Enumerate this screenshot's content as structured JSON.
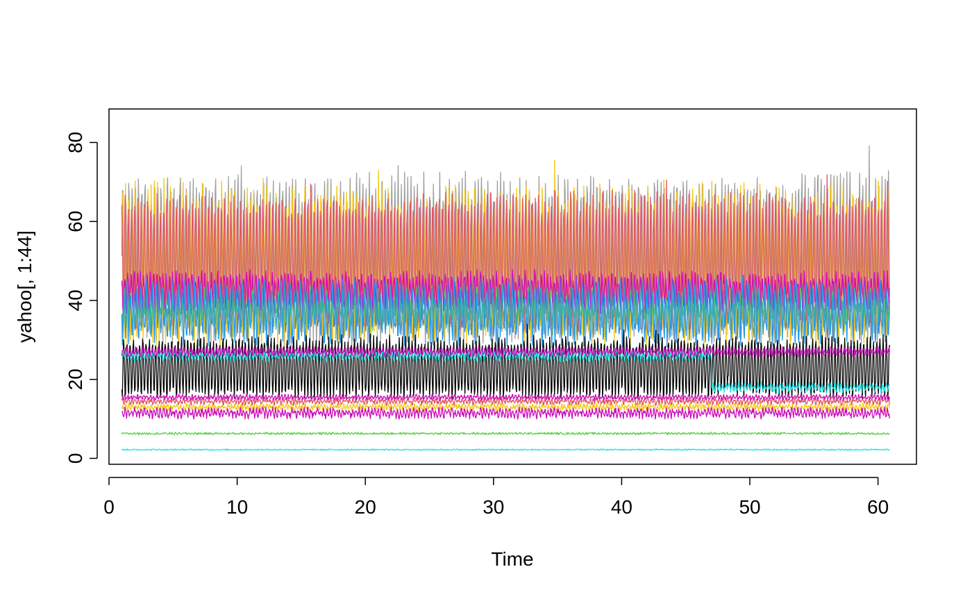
{
  "chart_data": {
    "type": "line",
    "title": "",
    "xlabel": "Time",
    "ylabel": "yahoo[, 1:44]",
    "xlim": [
      0,
      63
    ],
    "ylim": [
      -1.5,
      88.5
    ],
    "x_ticks": [
      0,
      10,
      20,
      30,
      40,
      50,
      60
    ],
    "y_ticks": [
      0,
      20,
      40,
      60,
      80
    ],
    "x_tick_labels": [
      "0",
      "10",
      "20",
      "30",
      "40",
      "50",
      "60"
    ],
    "y_tick_labels": [
      "0",
      "20",
      "40",
      "60",
      "80"
    ],
    "x_range_of_series": [
      1,
      60.9
    ],
    "grid": false,
    "legend": "none",
    "palette": [
      "#000000",
      "#DF536B",
      "#61D04F",
      "#2297E6",
      "#28E2E5",
      "#CD0BBC",
      "#F5C710",
      "#9E9E9E"
    ],
    "series": [
      {
        "color": "#9E9E9E",
        "base": 50,
        "amp": 19,
        "noise": 4,
        "label": "gray high oscillating band"
      },
      {
        "color": "#F5C710",
        "base": 49,
        "amp": 17,
        "noise": 5,
        "label": "yellow high oscillating band"
      },
      {
        "color": "#DF536B",
        "base": 50,
        "amp": 15,
        "noise": 3,
        "label": "red oscillating band"
      },
      {
        "color": "#CD0BBC",
        "base": 42,
        "amp": 4,
        "noise": 2,
        "label": "magenta mid band"
      },
      {
        "color": "#61D04F",
        "base": 38,
        "amp": 3,
        "noise": 3,
        "label": "green mid band"
      },
      {
        "color": "#2297E6",
        "base": 37,
        "amp": 6,
        "noise": 3,
        "label": "blue oscillating band"
      },
      {
        "color": "#000000",
        "base": 23,
        "amp": 7,
        "noise": 1.5,
        "label": "black oscillating band"
      },
      {
        "color": "#28E2E5",
        "base": 26,
        "amp": 0.8,
        "noise": 0.8,
        "label": "cyan level ~26 then ~18"
      },
      {
        "color": "#CD0BBC",
        "base": 27,
        "amp": 0.8,
        "noise": 0.6,
        "label": "magenta level ~27"
      },
      {
        "color": "#F5C710",
        "base": 13,
        "amp": 0.5,
        "noise": 0.6,
        "label": "yellow level ~13"
      },
      {
        "color": "#DF536B",
        "base": 14.5,
        "amp": 0.5,
        "noise": 0.6,
        "label": "red level ~14"
      },
      {
        "color": "#CD0BBC",
        "base": 11.5,
        "amp": 0.8,
        "noise": 0.8,
        "label": "magenta level ~11"
      },
      {
        "color": "#CD0BBC",
        "base": 15.5,
        "amp": 0.4,
        "noise": 0.4,
        "label": "magenta level ~15"
      },
      {
        "color": "#61D04F",
        "base": 6.3,
        "amp": 0.1,
        "noise": 0.25,
        "label": "green level ~6"
      },
      {
        "color": "#28E2E5",
        "base": 2.2,
        "amp": 0.05,
        "noise": 0.15,
        "label": "cyan level ~2"
      }
    ]
  }
}
